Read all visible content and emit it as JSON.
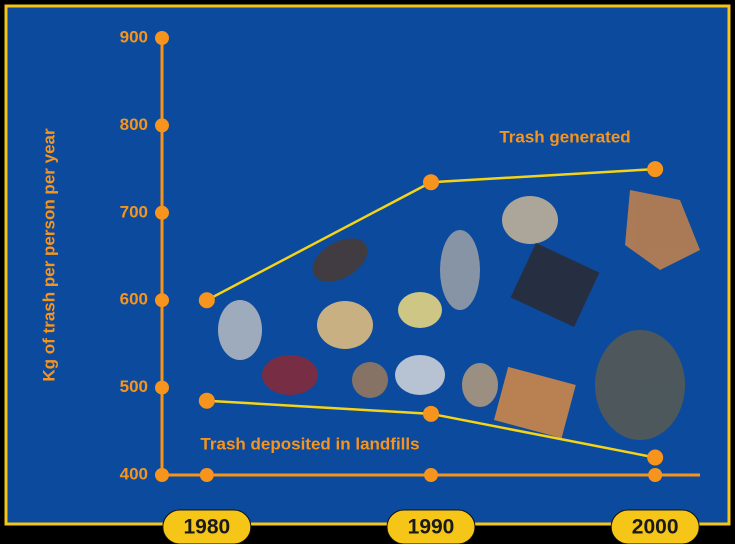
{
  "chart_data": {
    "type": "line",
    "ylabel": "Kg of trash per person per year",
    "x": [
      1980,
      1990,
      2000
    ],
    "xlim": [
      1978,
      2002
    ],
    "xticks": [
      1980,
      1990,
      2000
    ],
    "ylim": [
      400,
      900
    ],
    "yticks": [
      400,
      500,
      600,
      700,
      800,
      900
    ],
    "marker_color": "#f7941d",
    "series": [
      {
        "name": "Trash generated",
        "color": "#f5d317",
        "values": [
          600,
          735,
          750
        ]
      },
      {
        "name": "Trash deposited in landfills",
        "color": "#f5d317",
        "values": [
          485,
          470,
          420
        ]
      }
    ]
  }
}
